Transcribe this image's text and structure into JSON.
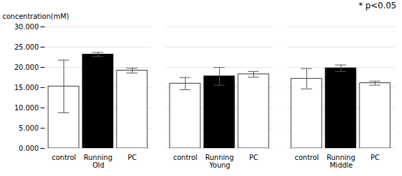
{
  "chart_data": {
    "type": "bar",
    "categories": [
      "Old",
      "Young",
      "Middle"
    ],
    "series": [
      {
        "name": "control",
        "color": "white",
        "values": [
          15.3,
          16.0,
          17.2
        ],
        "errors": [
          6.5,
          1.5,
          2.5
        ]
      },
      {
        "name": "Running",
        "color": "black",
        "values": [
          23.2,
          17.8,
          19.8
        ],
        "errors": [
          0.5,
          2.2,
          0.8
        ]
      },
      {
        "name": "PC",
        "color": "white",
        "values": [
          19.2,
          18.3,
          16.1
        ],
        "errors": [
          0.6,
          0.7,
          0.5
        ]
      }
    ],
    "ylabel": "concentration(mM)",
    "ylim": [
      0,
      30
    ],
    "yticks": [
      {
        "value": 0,
        "label": "0.000"
      },
      {
        "value": 5,
        "label": "5.000"
      },
      {
        "value": 10,
        "label": "10.000"
      },
      {
        "value": 15,
        "label": "15.000"
      },
      {
        "value": 20,
        "label": "20.000"
      },
      {
        "value": 25,
        "label": "25.000"
      },
      {
        "value": 30,
        "label": "30.000"
      }
    ],
    "grid": true,
    "annotation": "* p<0.05"
  }
}
